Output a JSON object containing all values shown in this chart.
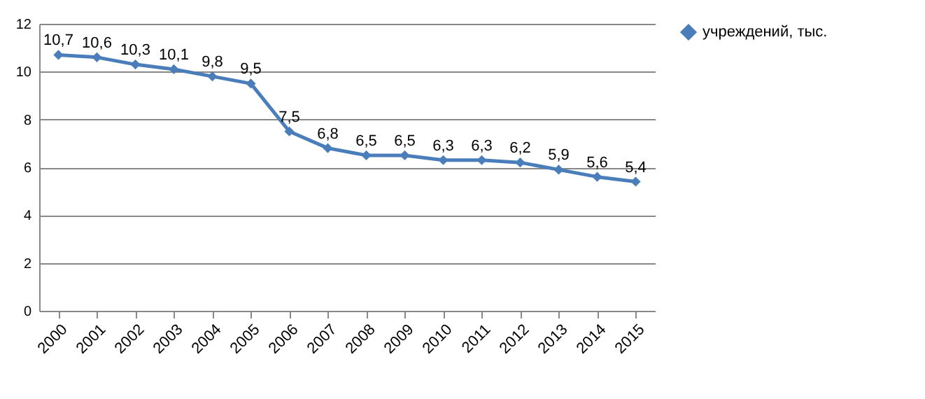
{
  "chart_data": {
    "type": "line",
    "categories": [
      "2000",
      "2001",
      "2002",
      "2003",
      "2004",
      "2005",
      "2006",
      "2007",
      "2008",
      "2009",
      "2010",
      "2011",
      "2012",
      "2013",
      "2014",
      "2015"
    ],
    "series": [
      {
        "name": "учреждений, тыс.",
        "color": "#4a7ebb",
        "values": [
          10.7,
          10.6,
          10.3,
          10.1,
          9.8,
          9.5,
          7.5,
          6.8,
          6.5,
          6.5,
          6.3,
          6.3,
          6.2,
          5.9,
          5.6,
          5.4
        ],
        "value_labels": [
          "10,7",
          "10,6",
          "10,3",
          "10,1",
          "9,8",
          "9,5",
          "7,5",
          "6,8",
          "6,5",
          "6,5",
          "6,3",
          "6,3",
          "6,2",
          "5,9",
          "5,6",
          "5,4"
        ]
      }
    ],
    "ylim": [
      0,
      12
    ],
    "yticks": [
      0,
      2,
      4,
      6,
      8,
      10,
      12
    ],
    "grid": "y",
    "legend": "right",
    "marker": "diamond",
    "line_style": "solid"
  }
}
